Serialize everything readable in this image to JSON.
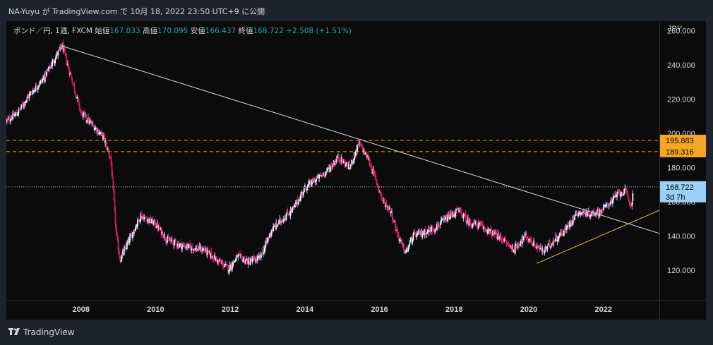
{
  "header": {
    "title": "NA-Yuyu が TradingView.com で 10月 18, 2022 23:50 UTC+9 に公開"
  },
  "legend": {
    "symbol": "ポンド／円, 1週, FXCM",
    "open_label": "始値",
    "open": "167.033",
    "high_label": "高値",
    "high": "170.095",
    "low_label": "安値",
    "low": "166.437",
    "close_label": "終値",
    "close": "168.722",
    "change": "+2.508 (+1.51%)"
  },
  "footer": {
    "brand": "TradingView"
  },
  "colors": {
    "up": "#26a69a",
    "down": "#ef5350",
    "bull_wick": "#9ad0f5",
    "bear_body": "#d81b60",
    "hline": "#f5a623",
    "price": "#9ad0f5",
    "trend_down": "#cccccc",
    "trend_up": "#d8b84a"
  },
  "chart_data": {
    "type": "candlestick",
    "currency_label": "JPY",
    "ylim": [
      110,
      260
    ],
    "y_ticks": [
      "120.000",
      "140.000",
      "160.000",
      "180.000",
      "200.000",
      "220.000",
      "240.000",
      "260.000"
    ],
    "x_ticks": [
      "2008",
      "2010",
      "2012",
      "2014",
      "2016",
      "2018",
      "2020",
      "2022"
    ],
    "price_path": [
      {
        "x": 2006.0,
        "y": 207
      },
      {
        "x": 2006.3,
        "y": 212
      },
      {
        "x": 2006.6,
        "y": 222
      },
      {
        "x": 2007.0,
        "y": 232
      },
      {
        "x": 2007.3,
        "y": 244
      },
      {
        "x": 2007.5,
        "y": 251
      },
      {
        "x": 2007.75,
        "y": 232
      },
      {
        "x": 2008.0,
        "y": 212
      },
      {
        "x": 2008.3,
        "y": 205
      },
      {
        "x": 2008.6,
        "y": 198
      },
      {
        "x": 2008.8,
        "y": 185
      },
      {
        "x": 2008.95,
        "y": 140
      },
      {
        "x": 2009.05,
        "y": 126
      },
      {
        "x": 2009.3,
        "y": 138
      },
      {
        "x": 2009.6,
        "y": 152
      },
      {
        "x": 2010.0,
        "y": 147
      },
      {
        "x": 2010.3,
        "y": 138
      },
      {
        "x": 2010.6,
        "y": 135
      },
      {
        "x": 2011.0,
        "y": 133
      },
      {
        "x": 2011.3,
        "y": 132
      },
      {
        "x": 2011.7,
        "y": 125
      },
      {
        "x": 2011.95,
        "y": 121
      },
      {
        "x": 2012.2,
        "y": 128
      },
      {
        "x": 2012.5,
        "y": 125
      },
      {
        "x": 2012.8,
        "y": 127
      },
      {
        "x": 2013.1,
        "y": 143
      },
      {
        "x": 2013.4,
        "y": 150
      },
      {
        "x": 2013.7,
        "y": 156
      },
      {
        "x": 2014.0,
        "y": 168
      },
      {
        "x": 2014.3,
        "y": 173
      },
      {
        "x": 2014.6,
        "y": 178
      },
      {
        "x": 2014.9,
        "y": 186
      },
      {
        "x": 2015.2,
        "y": 180
      },
      {
        "x": 2015.45,
        "y": 194
      },
      {
        "x": 2015.7,
        "y": 185
      },
      {
        "x": 2015.9,
        "y": 173
      },
      {
        "x": 2016.1,
        "y": 160
      },
      {
        "x": 2016.3,
        "y": 155
      },
      {
        "x": 2016.5,
        "y": 140
      },
      {
        "x": 2016.7,
        "y": 130
      },
      {
        "x": 2016.9,
        "y": 140
      },
      {
        "x": 2017.2,
        "y": 142
      },
      {
        "x": 2017.5,
        "y": 145
      },
      {
        "x": 2017.8,
        "y": 150
      },
      {
        "x": 2018.1,
        "y": 155
      },
      {
        "x": 2018.4,
        "y": 148
      },
      {
        "x": 2018.7,
        "y": 146
      },
      {
        "x": 2019.0,
        "y": 142
      },
      {
        "x": 2019.3,
        "y": 138
      },
      {
        "x": 2019.6,
        "y": 132
      },
      {
        "x": 2019.9,
        "y": 140
      },
      {
        "x": 2020.2,
        "y": 134
      },
      {
        "x": 2020.4,
        "y": 131
      },
      {
        "x": 2020.7,
        "y": 138
      },
      {
        "x": 2021.0,
        "y": 144
      },
      {
        "x": 2021.3,
        "y": 154
      },
      {
        "x": 2021.6,
        "y": 153
      },
      {
        "x": 2021.9,
        "y": 154
      },
      {
        "x": 2022.2,
        "y": 160
      },
      {
        "x": 2022.4,
        "y": 165
      },
      {
        "x": 2022.6,
        "y": 166
      },
      {
        "x": 2022.75,
        "y": 157
      },
      {
        "x": 2022.8,
        "y": 168.7
      }
    ],
    "trendlines": [
      {
        "x1": 2007.5,
        "y1": 251,
        "x2": 2023.5,
        "y2": 141.5,
        "color": "#cccccc"
      },
      {
        "x1": 2020.22,
        "y1": 124,
        "x2": 2023.5,
        "y2": 155,
        "color": "#d8b84a"
      }
    ],
    "horizontal_lines": [
      {
        "value": 195.883,
        "label": "195.883",
        "color": "#f5a623"
      },
      {
        "value": 189.316,
        "label": "189.316",
        "color": "#f5a623"
      }
    ],
    "last_price": {
      "value": 168.722,
      "label": "168.722",
      "countdown": "3d 7h"
    }
  }
}
